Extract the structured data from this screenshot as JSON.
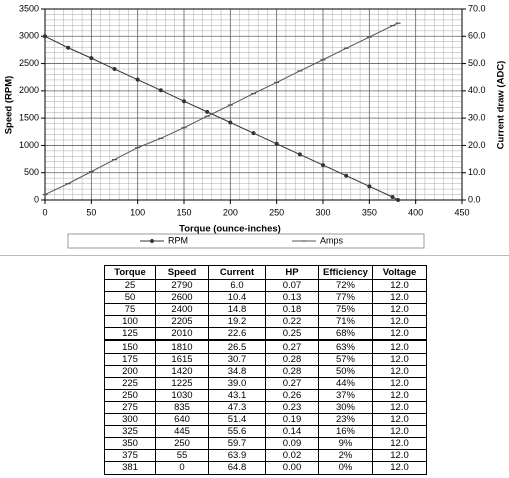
{
  "chart_data": {
    "type": "line",
    "x_label": "Torque (ounce-inches)",
    "y_label": "Speed (RPM)",
    "y2_label": "Current draw (ADC)",
    "x": [
      0,
      25,
      50,
      75,
      100,
      125,
      150,
      175,
      200,
      225,
      250,
      275,
      300,
      325,
      350,
      375,
      381
    ],
    "series": [
      {
        "name": "RPM",
        "color": "#333333",
        "marker": "circle",
        "values": [
          3000,
          2790,
          2600,
          2400,
          2205,
          2010,
          1810,
          1615,
          1420,
          1225,
          1030,
          835,
          640,
          445,
          250,
          55,
          0
        ]
      },
      {
        "name": "Amps",
        "color": "#555555",
        "marker": "dash",
        "axis": "y2",
        "values": [
          2.0,
          6.0,
          10.4,
          14.8,
          19.2,
          22.6,
          26.5,
          30.7,
          34.8,
          39.0,
          43.1,
          47.3,
          51.4,
          55.6,
          59.7,
          63.9,
          64.8
        ]
      }
    ],
    "xlim": [
      0,
      450
    ],
    "xticks": [
      0,
      50,
      100,
      150,
      200,
      250,
      300,
      350,
      400,
      450
    ],
    "ylim": [
      0,
      3500
    ],
    "yticks": [
      0,
      500,
      1000,
      1500,
      2000,
      2500,
      3000,
      3500
    ],
    "y2lim": [
      0,
      70
    ],
    "y2ticks": [
      {
        "value": 0,
        "label": "0.0"
      },
      {
        "value": 10,
        "label": "10.0"
      },
      {
        "value": 20,
        "label": "20.0"
      },
      {
        "value": 30,
        "label": "30.0"
      },
      {
        "value": 40,
        "label": "40.0"
      },
      {
        "value": 50,
        "label": "50.0"
      },
      {
        "value": 60,
        "label": "60.0"
      },
      {
        "value": 70,
        "label": "70.0"
      }
    ],
    "grid": true,
    "minor_grid": {
      "x": 10,
      "y": 100
    },
    "legend": "bottom"
  },
  "table": {
    "columns": [
      "Torque",
      "Speed",
      "Current",
      "HP",
      "Efficiency",
      "Voltage"
    ],
    "rows": [
      [
        "25",
        "2790",
        "6.0",
        "0.07",
        "72%",
        "12.0"
      ],
      [
        "50",
        "2600",
        "10.4",
        "0.13",
        "77%",
        "12.0"
      ],
      [
        "75",
        "2400",
        "14.8",
        "0.18",
        "75%",
        "12.0"
      ],
      [
        "100",
        "2205",
        "19.2",
        "0.22",
        "71%",
        "12.0"
      ],
      [
        "125",
        "2010",
        "22.6",
        "0.25",
        "68%",
        "12.0"
      ],
      [
        "150",
        "1810",
        "26.5",
        "0.27",
        "63%",
        "12.0"
      ],
      [
        "175",
        "1615",
        "30.7",
        "0.28",
        "57%",
        "12.0"
      ],
      [
        "200",
        "1420",
        "34.8",
        "0.28",
        "50%",
        "12.0"
      ],
      [
        "225",
        "1225",
        "39.0",
        "0.27",
        "44%",
        "12.0"
      ],
      [
        "250",
        "1030",
        "43.1",
        "0.26",
        "37%",
        "12.0"
      ],
      [
        "275",
        "835",
        "47.3",
        "0.23",
        "30%",
        "12.0"
      ],
      [
        "300",
        "640",
        "51.4",
        "0.19",
        "23%",
        "12.0"
      ],
      [
        "325",
        "445",
        "55.6",
        "0.14",
        "16%",
        "12.0"
      ],
      [
        "350",
        "250",
        "59.7",
        "0.09",
        "9%",
        "12.0"
      ],
      [
        "375",
        "55",
        "63.9",
        "0.02",
        "2%",
        "12.0"
      ],
      [
        "381",
        "0",
        "64.8",
        "0.00",
        "0%",
        "12.0"
      ]
    ]
  }
}
